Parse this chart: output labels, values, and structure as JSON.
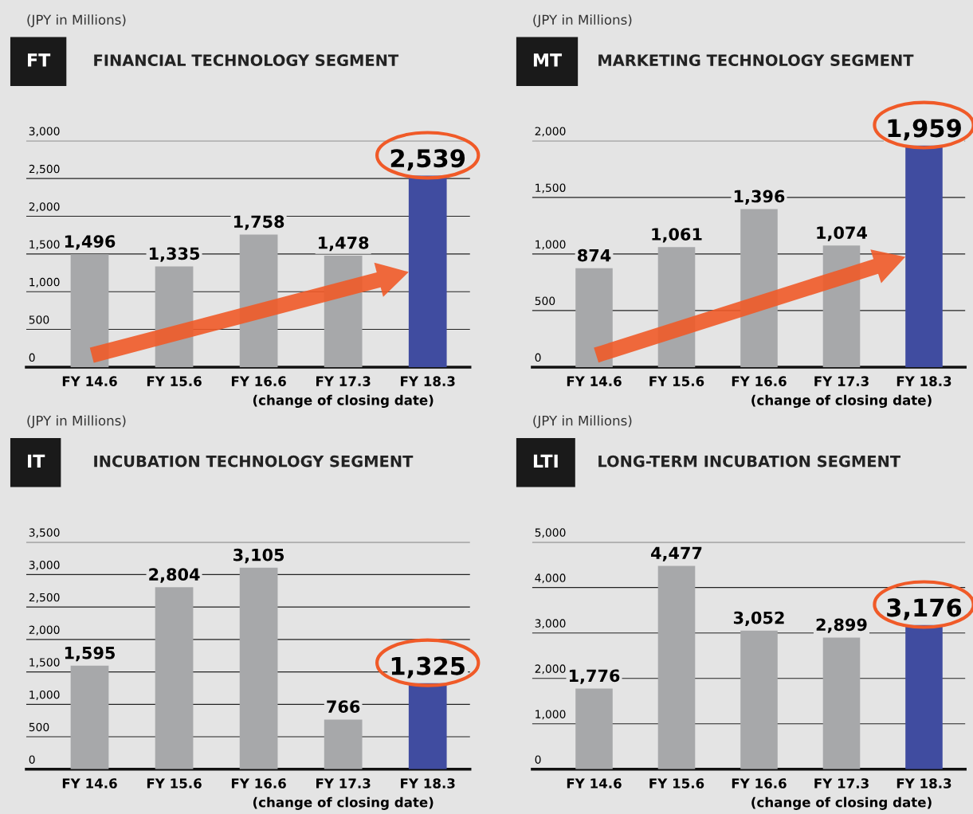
{
  "chart_data": [
    {
      "type": "bar",
      "title": "FT",
      "subtitle": "FINANCIAL TECHNOLOGY SEGMENT",
      "annotations": [
        "(JPY in Millions)"
      ],
      "categories": [
        "FY 14.6",
        "FY 15.6",
        "FY 16.6",
        "FY 17.3\n(change of closing date)",
        "FY 18.3"
      ],
      "values": [
        1496,
        1335,
        1758,
        1478,
        2539
      ],
      "value_labels": [
        "1,496",
        "1,335",
        "1,758",
        "1,478",
        "2,539"
      ],
      "colors": [
        "#a7a8aa",
        "#a7a8aa",
        "#a7a8aa",
        "#a7a8aa",
        "#404ca0"
      ],
      "ylim": [
        0,
        3000
      ],
      "yticks": [
        0,
        {
          "value": 500,
          "label": "500"
        },
        {
          "value": 1000,
          "label": "1,000"
        },
        {
          "value": 1500,
          "label": "1,500"
        },
        {
          "value": 2000,
          "label": "2,000"
        },
        {
          "value": 2500,
          "label": "2,500"
        },
        {
          "value": 3000,
          "label": "3,000"
        }
      ],
      "grid": "y"
    },
    {
      "type": "bar",
      "title": "MT",
      "subtitle": "MARKETING TECHNOLOGY SEGMENT",
      "annotations": [
        "(JPY in Millions)"
      ],
      "categories": [
        "FY 14.6",
        "FY 15.6",
        "FY 16.6",
        "FY 17.3\n(change of closing date)",
        "FY 18.3"
      ],
      "values": [
        874,
        1061,
        1396,
        1074,
        1959
      ],
      "value_labels": [
        "874",
        "1,061",
        "1,396",
        "1,074",
        "1,959"
      ],
      "colors": [
        "#a7a8aa",
        "#a7a8aa",
        "#a7a8aa",
        "#a7a8aa",
        "#404ca0"
      ],
      "ylim": [
        0,
        2000
      ],
      "yticks": [
        0,
        {
          "value": 500,
          "label": "500"
        },
        {
          "value": 1000,
          "label": "1,000"
        },
        {
          "value": 1500,
          "label": "1,500"
        },
        {
          "value": 2000,
          "label": "2,000"
        }
      ],
      "grid": "y"
    },
    {
      "type": "bar",
      "title": "IT",
      "subtitle": "INCUBATION TECHNOLOGY SEGMENT",
      "annotations": [
        "(JPY in Millions)"
      ],
      "categories": [
        "FY 14.6",
        "FY 15.6",
        "FY 16.6",
        "FY 17.3\n(change of closing date)",
        "FY 18.3"
      ],
      "values": [
        1595,
        2804,
        3105,
        766,
        1325
      ],
      "value_labels": [
        "1,595",
        "2,804",
        "3,105",
        "766",
        "1,325"
      ],
      "colors": [
        "#a7a8aa",
        "#a7a8aa",
        "#a7a8aa",
        "#a7a8aa",
        "#404ca0"
      ],
      "ylim": [
        0,
        3500
      ],
      "yticks": [
        0,
        {
          "value": 500,
          "label": "500"
        },
        {
          "value": 1000,
          "label": "1,000"
        },
        {
          "value": 1500,
          "label": "1,500"
        },
        {
          "value": 2000,
          "label": "2,000"
        },
        {
          "value": 2500,
          "label": "2,500"
        },
        {
          "value": 3000,
          "label": "3,000"
        },
        {
          "value": 3500,
          "label": "3,500"
        }
      ],
      "grid": "y"
    },
    {
      "type": "bar",
      "title": "LTI",
      "subtitle": "LONG-TERM INCUBATION SEGMENT",
      "annotations": [
        "(JPY in Millions)"
      ],
      "categories": [
        "FY 14.6",
        "FY 15.6",
        "FY 16.6",
        "FY 17.3\n(change of closing date)",
        "FY 18.3"
      ],
      "values": [
        1776,
        4477,
        3052,
        2899,
        3176
      ],
      "value_labels": [
        "1,776",
        "4,477",
        "3,052",
        "2,899",
        "3,176"
      ],
      "colors": [
        "#a7a8aa",
        "#a7a8aa",
        "#a7a8aa",
        "#a7a8aa",
        "#404ca0"
      ],
      "ylim": [
        0,
        5000
      ],
      "yticks": [
        0,
        {
          "value": 1000,
          "label": "1,000"
        },
        {
          "value": 2000,
          "label": "2,000"
        },
        {
          "value": 3000,
          "label": "3,000"
        },
        {
          "value": 4000,
          "label": "4,000"
        },
        {
          "value": 5000,
          "label": "5,000"
        }
      ],
      "grid": "y"
    }
  ]
}
